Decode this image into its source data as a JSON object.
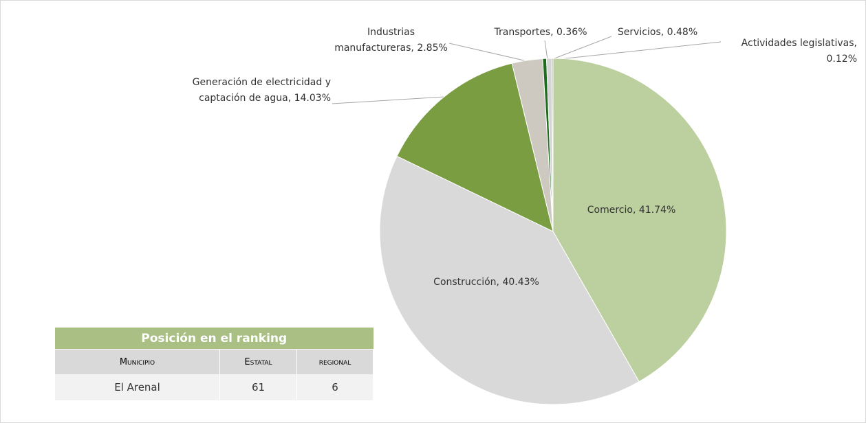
{
  "chart_data": {
    "type": "pie",
    "categories": [
      "Comercio",
      "Construcción",
      "Generación de electricidad y captación de agua",
      "Industrias manufactureras",
      "Transportes",
      "Servicios",
      "Actividades legislativas"
    ],
    "values": [
      41.74,
      40.43,
      14.03,
      2.85,
      0.36,
      0.48,
      0.12
    ],
    "value_labels": [
      "41.74%",
      "40.43%",
      "14.03%",
      "2.85%",
      "0.36%",
      "0.48%",
      "0.12%"
    ],
    "colors": [
      "#bccf9e",
      "#d9d9d9",
      "#7a9d42",
      "#cdc9c0",
      "#1f6b1f",
      "#d4d4d4",
      "#a6a6a6"
    ]
  },
  "table": {
    "title": "Posición en el ranking",
    "header": [
      "Municipio",
      "Estatal",
      "regional"
    ],
    "rows": [
      [
        "El Arenal",
        "61",
        "6"
      ]
    ]
  }
}
